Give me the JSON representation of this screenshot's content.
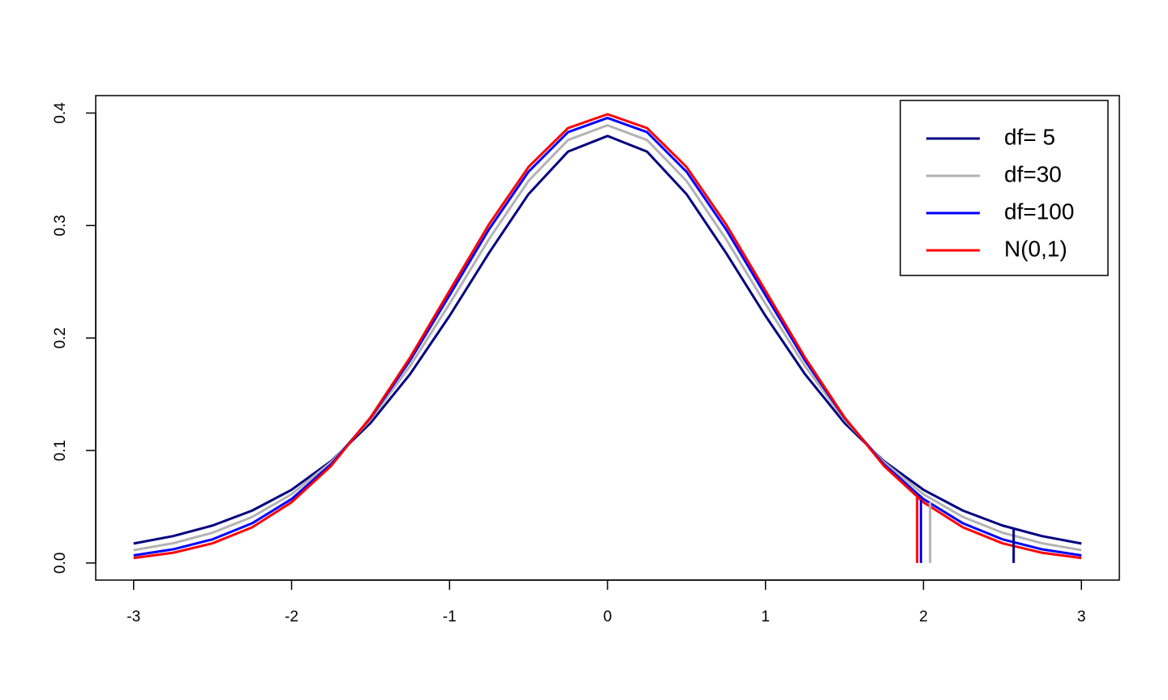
{
  "chart_data": {
    "type": "line",
    "x": [
      -3,
      -2.75,
      -2.5,
      -2.25,
      -2,
      -1.75,
      -1.5,
      -1.25,
      -1,
      -0.75,
      -0.5,
      -0.25,
      0,
      0.25,
      0.5,
      0.75,
      1,
      1.25,
      1.5,
      1.75,
      2,
      2.25,
      2.5,
      2.75,
      3
    ],
    "series": [
      {
        "name": "df= 5",
        "color": "#000080",
        "values": [
          0.01729,
          0.02393,
          0.03333,
          0.04657,
          0.06509,
          0.09054,
          0.12452,
          0.1679,
          0.21968,
          0.2757,
          0.32793,
          0.36572,
          0.37961,
          0.36572,
          0.32793,
          0.2757,
          0.21968,
          0.1679,
          0.12452,
          0.09054,
          0.06509,
          0.04657,
          0.03333,
          0.02393,
          0.01729
        ],
        "critical": {
          "x": 2.571,
          "y": 0.0303
        }
      },
      {
        "name": "df=30",
        "color": "#b3b3b3",
        "values": [
          0.0114,
          0.01757,
          0.02694,
          0.0409,
          0.06114,
          0.08953,
          0.12745,
          0.17511,
          0.23036,
          0.28798,
          0.3397,
          0.376,
          0.38911,
          0.376,
          0.3397,
          0.28798,
          0.23036,
          0.17511,
          0.12745,
          0.08953,
          0.06114,
          0.0409,
          0.02694,
          0.01757,
          0.0114
        ],
        "critical": {
          "x": 2.042,
          "y": 0.054
        }
      },
      {
        "name": "df=100",
        "color": "#0000ff",
        "values": [
          0.00678,
          0.01214,
          0.02106,
          0.03528,
          0.05685,
          0.08769,
          0.12896,
          0.1801,
          0.23799,
          0.29666,
          0.34788,
          0.38307,
          0.39563,
          0.38307,
          0.34788,
          0.29666,
          0.23799,
          0.1801,
          0.12896,
          0.08769,
          0.05685,
          0.03528,
          0.02106,
          0.01214,
          0.00678
        ],
        "critical": {
          "x": 1.984,
          "y": 0.056
        }
      },
      {
        "name": "N(0,1)",
        "color": "#ff0000",
        "values": [
          0.004432,
          0.009094,
          0.017528,
          0.03174,
          0.053991,
          0.086277,
          0.129518,
          0.182649,
          0.241971,
          0.301137,
          0.352065,
          0.386668,
          0.398942,
          0.386668,
          0.352065,
          0.301137,
          0.241971,
          0.182649,
          0.129518,
          0.086277,
          0.053991,
          0.03174,
          0.017528,
          0.009094,
          0.004432
        ],
        "critical": {
          "x": 1.96,
          "y": 0.0584
        }
      }
    ],
    "xlim": [
      -3.24,
      3.24
    ],
    "xticks": [
      -3,
      -2,
      -1,
      0,
      1,
      2,
      3
    ],
    "ylim": [
      -0.0152,
      0.4155
    ],
    "yticks": [
      {
        "value": 0,
        "label": "0.0"
      },
      0.1,
      0.2,
      0.3,
      0.4
    ],
    "legend": "top-right"
  }
}
